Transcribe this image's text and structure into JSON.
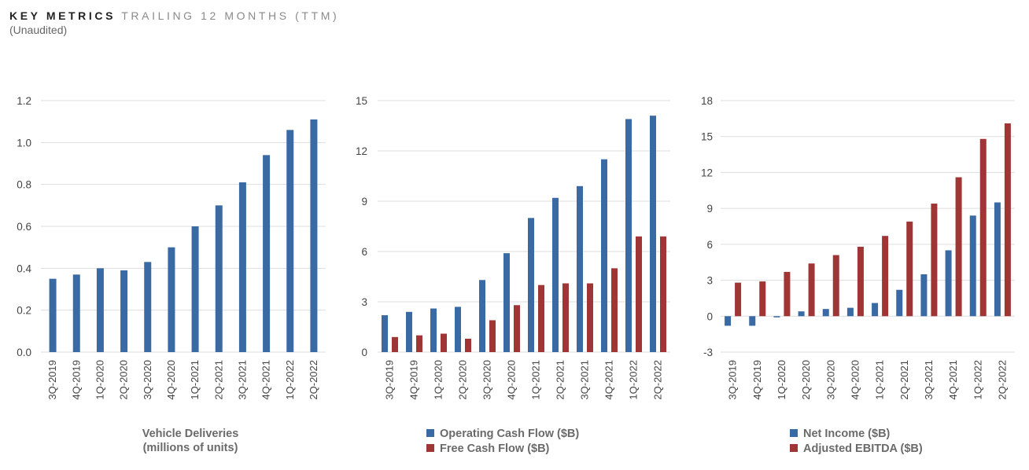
{
  "header": {
    "title": "KEY METRICS",
    "subtitle": "TRAILING 12 MONTHS (TTM)",
    "note": "(Unaudited)"
  },
  "colors": {
    "blue": "#3a6aa3",
    "red": "#a03535",
    "grid": "#dddddd"
  },
  "chart_data": [
    {
      "type": "bar",
      "categories": [
        "3Q-2019",
        "4Q-2019",
        "1Q-2020",
        "2Q-2020",
        "3Q-2020",
        "4Q-2020",
        "1Q-2021",
        "2Q-2021",
        "3Q-2021",
        "4Q-2021",
        "1Q-2022",
        "2Q-2022"
      ],
      "series": [
        {
          "values": [
            0.35,
            0.37,
            0.4,
            0.39,
            0.43,
            0.5,
            0.6,
            0.7,
            0.81,
            0.94,
            1.06,
            1.11
          ],
          "color": "#3a6aa3"
        }
      ],
      "xlabel_lines": [
        "Vehicle Deliveries",
        "(millions of units)"
      ],
      "ylim": [
        0,
        1.2
      ],
      "yticks": [
        "0.0",
        "0.2",
        "0.4",
        "0.6",
        "0.8",
        "1.0",
        "1.2"
      ],
      "grid": true,
      "legend": "none"
    },
    {
      "type": "bar",
      "categories": [
        "3Q-2019",
        "4Q-2019",
        "1Q-2020",
        "2Q-2020",
        "3Q-2020",
        "4Q-2020",
        "1Q-2021",
        "2Q-2021",
        "3Q-2021",
        "4Q-2021",
        "1Q-2022",
        "2Q-2022"
      ],
      "series": [
        {
          "name": "Operating Cash Flow ($B)",
          "values": [
            2.2,
            2.4,
            2.6,
            2.7,
            4.3,
            5.9,
            8.0,
            9.2,
            9.9,
            11.5,
            13.9,
            14.1
          ],
          "color": "#3a6aa3"
        },
        {
          "name": "Free Cash Flow ($B)",
          "values": [
            0.9,
            1.0,
            1.1,
            0.8,
            1.9,
            2.8,
            4.0,
            4.1,
            4.1,
            5.0,
            6.9,
            6.9
          ],
          "color": "#a03535"
        }
      ],
      "ylim": [
        0,
        15
      ],
      "yticks": [
        "0",
        "3",
        "6",
        "9",
        "12",
        "15"
      ],
      "grid": true,
      "legend": "bottom"
    },
    {
      "type": "bar",
      "categories": [
        "3Q-2019",
        "4Q-2019",
        "1Q-2020",
        "2Q-2020",
        "3Q-2020",
        "4Q-2020",
        "1Q-2021",
        "2Q-2021",
        "3Q-2021",
        "4Q-2021",
        "1Q-2022",
        "2Q-2022"
      ],
      "series": [
        {
          "name": "Net Income ($B)",
          "values": [
            -0.8,
            -0.8,
            -0.1,
            0.4,
            0.6,
            0.7,
            1.1,
            2.2,
            3.5,
            5.5,
            8.4,
            9.5
          ],
          "color": "#3a6aa3"
        },
        {
          "name": "Adjusted EBITDA ($B)",
          "values": [
            2.8,
            2.9,
            3.7,
            4.4,
            5.1,
            5.8,
            6.7,
            7.9,
            9.4,
            11.6,
            14.8,
            16.1
          ],
          "color": "#a03535"
        }
      ],
      "ylim": [
        -3,
        18
      ],
      "yticks": [
        "-3",
        "0",
        "3",
        "6",
        "9",
        "12",
        "15",
        "18"
      ],
      "grid": true,
      "legend": "bottom"
    }
  ]
}
